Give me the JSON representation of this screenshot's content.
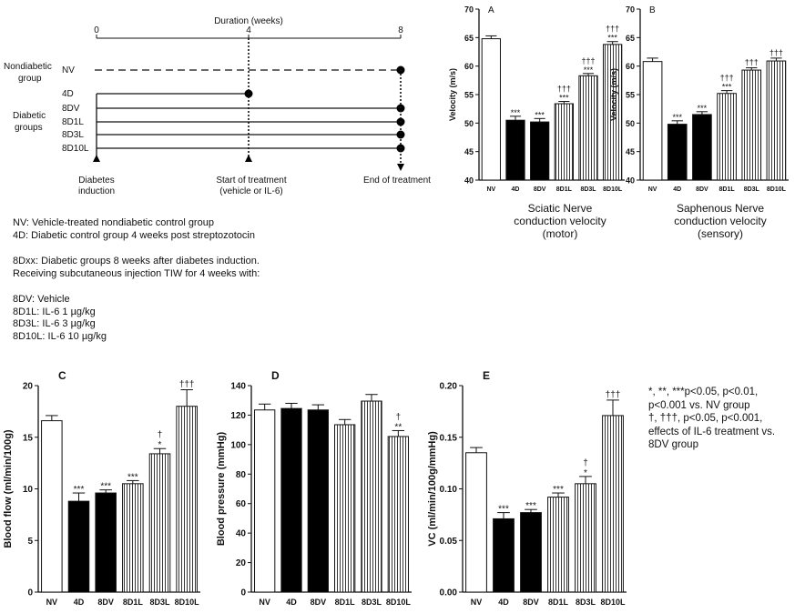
{
  "timeline": {
    "axis_title": "Duration (weeks)",
    "ticks": [
      "0",
      "4",
      "8"
    ],
    "nondiabetic_group_label": [
      "Nondiabetic",
      "group"
    ],
    "diabetic_groups_label": [
      "Diabetic",
      "groups"
    ],
    "groups": [
      {
        "name": "NV",
        "start_week": 0,
        "end_week": 8,
        "style": "dashed"
      },
      {
        "name": "4D",
        "start_week": 0,
        "end_week": 4,
        "style": "solid"
      },
      {
        "name": "8DV",
        "start_week": 0,
        "end_week": 8,
        "style": "solid"
      },
      {
        "name": "8D1L",
        "start_week": 0,
        "end_week": 8,
        "style": "solid"
      },
      {
        "name": "8D3L",
        "start_week": 0,
        "end_week": 8,
        "style": "solid"
      },
      {
        "name": "8D10L",
        "start_week": 0,
        "end_week": 8,
        "style": "solid"
      }
    ],
    "event_labels": [
      {
        "week": 0,
        "lines": [
          "Diabetes",
          "induction"
        ]
      },
      {
        "week": 4,
        "lines": [
          "Start of treatment",
          "(vehicle or IL-6)"
        ]
      },
      {
        "week": 8,
        "lines": [
          "End of treatment"
        ]
      }
    ]
  },
  "legend": {
    "block1": [
      "NV: Vehicle-treated nondiabetic control group",
      "4D: Diabetic control group 4 weeks post streptozotocin"
    ],
    "block2": [
      "8Dxx: Diabetic groups 8 weeks after diabetes induction.",
      "Receiving subcutaneous injection TIW for 4 weeks with:"
    ],
    "block3": [
      "8DV: Vehicle",
      "8D1L: IL-6 1 µg/kg",
      "8D3L: IL-6 3 µg/kg",
      "8D10L: IL-6 10 µg/kg"
    ]
  },
  "footnote": {
    "line1": "*, **, ***p<0.05, p<0.01,",
    "line2": "p<0.001 vs. NV group",
    "line3": "†, †††, p<0.05, p<0.001,",
    "line4": "effects of IL-6 treatment vs.",
    "line5": "8DV group"
  },
  "captions": {
    "A": [
      "Sciatic Nerve",
      "conduction velocity",
      "(motor)"
    ],
    "B": [
      "Saphenous Nerve",
      "conduction velocity",
      "(sensory)"
    ]
  },
  "chart_data": [
    {
      "type": "bar",
      "panel_letter": "A",
      "categories": [
        "NV",
        "4D",
        "8DV",
        "8D1L",
        "8D3L",
        "8D10L"
      ],
      "values": [
        64.8,
        50.5,
        50.2,
        53.4,
        58.3,
        63.8
      ],
      "errors": [
        0.5,
        0.7,
        0.6,
        0.4,
        0.4,
        0.5
      ],
      "marks_above": [
        "",
        "***",
        "***",
        "***",
        "***",
        "***"
      ],
      "marks_top": [
        "",
        "",
        "",
        "†††",
        "†††",
        "†††"
      ],
      "ylabel": "Velocity (m/s)",
      "ylim": [
        40,
        70
      ],
      "yticks": [
        40,
        45,
        50,
        55,
        60,
        65,
        70
      ]
    },
    {
      "type": "bar",
      "panel_letter": "B",
      "categories": [
        "NV",
        "4D",
        "8DV",
        "8D1L",
        "8D3L",
        "8D10L"
      ],
      "values": [
        60.8,
        49.8,
        51.5,
        55.2,
        59.3,
        60.9
      ],
      "errors": [
        0.6,
        0.6,
        0.5,
        0.5,
        0.4,
        0.5
      ],
      "marks_above": [
        "",
        "***",
        "***",
        "***",
        "",
        ""
      ],
      "marks_top": [
        "",
        "",
        "",
        "†††",
        "†††",
        "†††"
      ],
      "ylabel": "Velocity (m/s)",
      "ylim": [
        40,
        70
      ],
      "yticks": [
        40,
        45,
        50,
        55,
        60,
        65,
        70
      ]
    },
    {
      "type": "bar",
      "panel_letter": "C",
      "categories": [
        "NV",
        "4D",
        "8DV",
        "8D1L",
        "8D3L",
        "8D10L"
      ],
      "values": [
        16.6,
        8.8,
        9.6,
        10.5,
        13.4,
        18.0
      ],
      "errors": [
        0.5,
        0.8,
        0.3,
        0.3,
        0.5,
        1.6
      ],
      "marks_above": [
        "",
        "***",
        "***",
        "***",
        "*",
        ""
      ],
      "marks_top": [
        "",
        "",
        "",
        "",
        "†",
        "†††"
      ],
      "ylabel": "Blood flow (ml/min/100g)",
      "ylim": [
        0,
        20
      ],
      "yticks": [
        0,
        5,
        10,
        15,
        20
      ]
    },
    {
      "type": "bar",
      "panel_letter": "D",
      "categories": [
        "NV",
        "4D",
        "8DV",
        "8D1L",
        "8D3L",
        "8D10L"
      ],
      "values": [
        123.5,
        124.5,
        123.5,
        113.5,
        129.5,
        105.5
      ],
      "errors": [
        4.0,
        3.5,
        3.5,
        3.5,
        4.5,
        4.0
      ],
      "marks_above": [
        "",
        "",
        "",
        "",
        "",
        "**"
      ],
      "marks_top": [
        "",
        "",
        "",
        "",
        "",
        "†"
      ],
      "ylabel": "Blood pressure (mmHg)",
      "ylim": [
        0,
        140
      ],
      "yticks": [
        0,
        20,
        40,
        60,
        80,
        100,
        120,
        140
      ]
    },
    {
      "type": "bar",
      "panel_letter": "E",
      "categories": [
        "NV",
        "4D",
        "8DV",
        "8D1L",
        "8D3L",
        "8D10L"
      ],
      "values": [
        0.135,
        0.071,
        0.077,
        0.092,
        0.105,
        0.171
      ],
      "errors": [
        0.005,
        0.006,
        0.003,
        0.004,
        0.007,
        0.015
      ],
      "marks_above": [
        "",
        "***",
        "***",
        "***",
        "*",
        ""
      ],
      "marks_top": [
        "",
        "",
        "",
        "",
        "†",
        "†††"
      ],
      "ylabel": "VC (ml/min/100g/mmHg)",
      "ylim": [
        0,
        0.2
      ],
      "yticks": [
        "0.00",
        "0.05",
        "0.10",
        "0.15",
        "0.20"
      ]
    }
  ],
  "bar_colors": {
    "NV": "#ffffff",
    "4D": "#000000",
    "8DV": "#000000",
    "hatched": "#ffffff",
    "stroke": "#000000"
  }
}
